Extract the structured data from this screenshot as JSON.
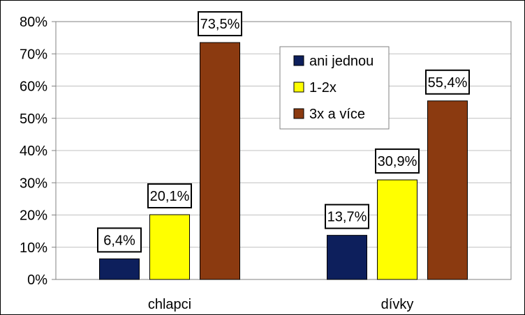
{
  "chart_data": {
    "type": "bar",
    "categories": [
      "chlapci",
      "dívky"
    ],
    "series": [
      {
        "name": "ani jednou",
        "values": [
          6.4,
          13.7
        ],
        "labels": [
          "6,4%",
          "13,7%"
        ],
        "color": "#0d1f5c"
      },
      {
        "name": "1-2x",
        "values": [
          20.1,
          30.9
        ],
        "labels": [
          "20,1%",
          "30,9%"
        ],
        "color": "#ffff00"
      },
      {
        "name": "3x a více",
        "values": [
          73.5,
          55.4
        ],
        "labels": [
          "73,5%",
          "55,4%"
        ],
        "color": "#8b3a10"
      }
    ],
    "ylim": [
      0,
      80
    ],
    "yticks": [
      0,
      10,
      20,
      30,
      40,
      50,
      60,
      70,
      80
    ],
    "ytick_labels": [
      "0%",
      "10%",
      "20%",
      "30%",
      "40%",
      "50%",
      "60%",
      "70%",
      "80%"
    ],
    "title": "",
    "xlabel": "",
    "ylabel": "",
    "grid": true,
    "legend": "top-center"
  }
}
